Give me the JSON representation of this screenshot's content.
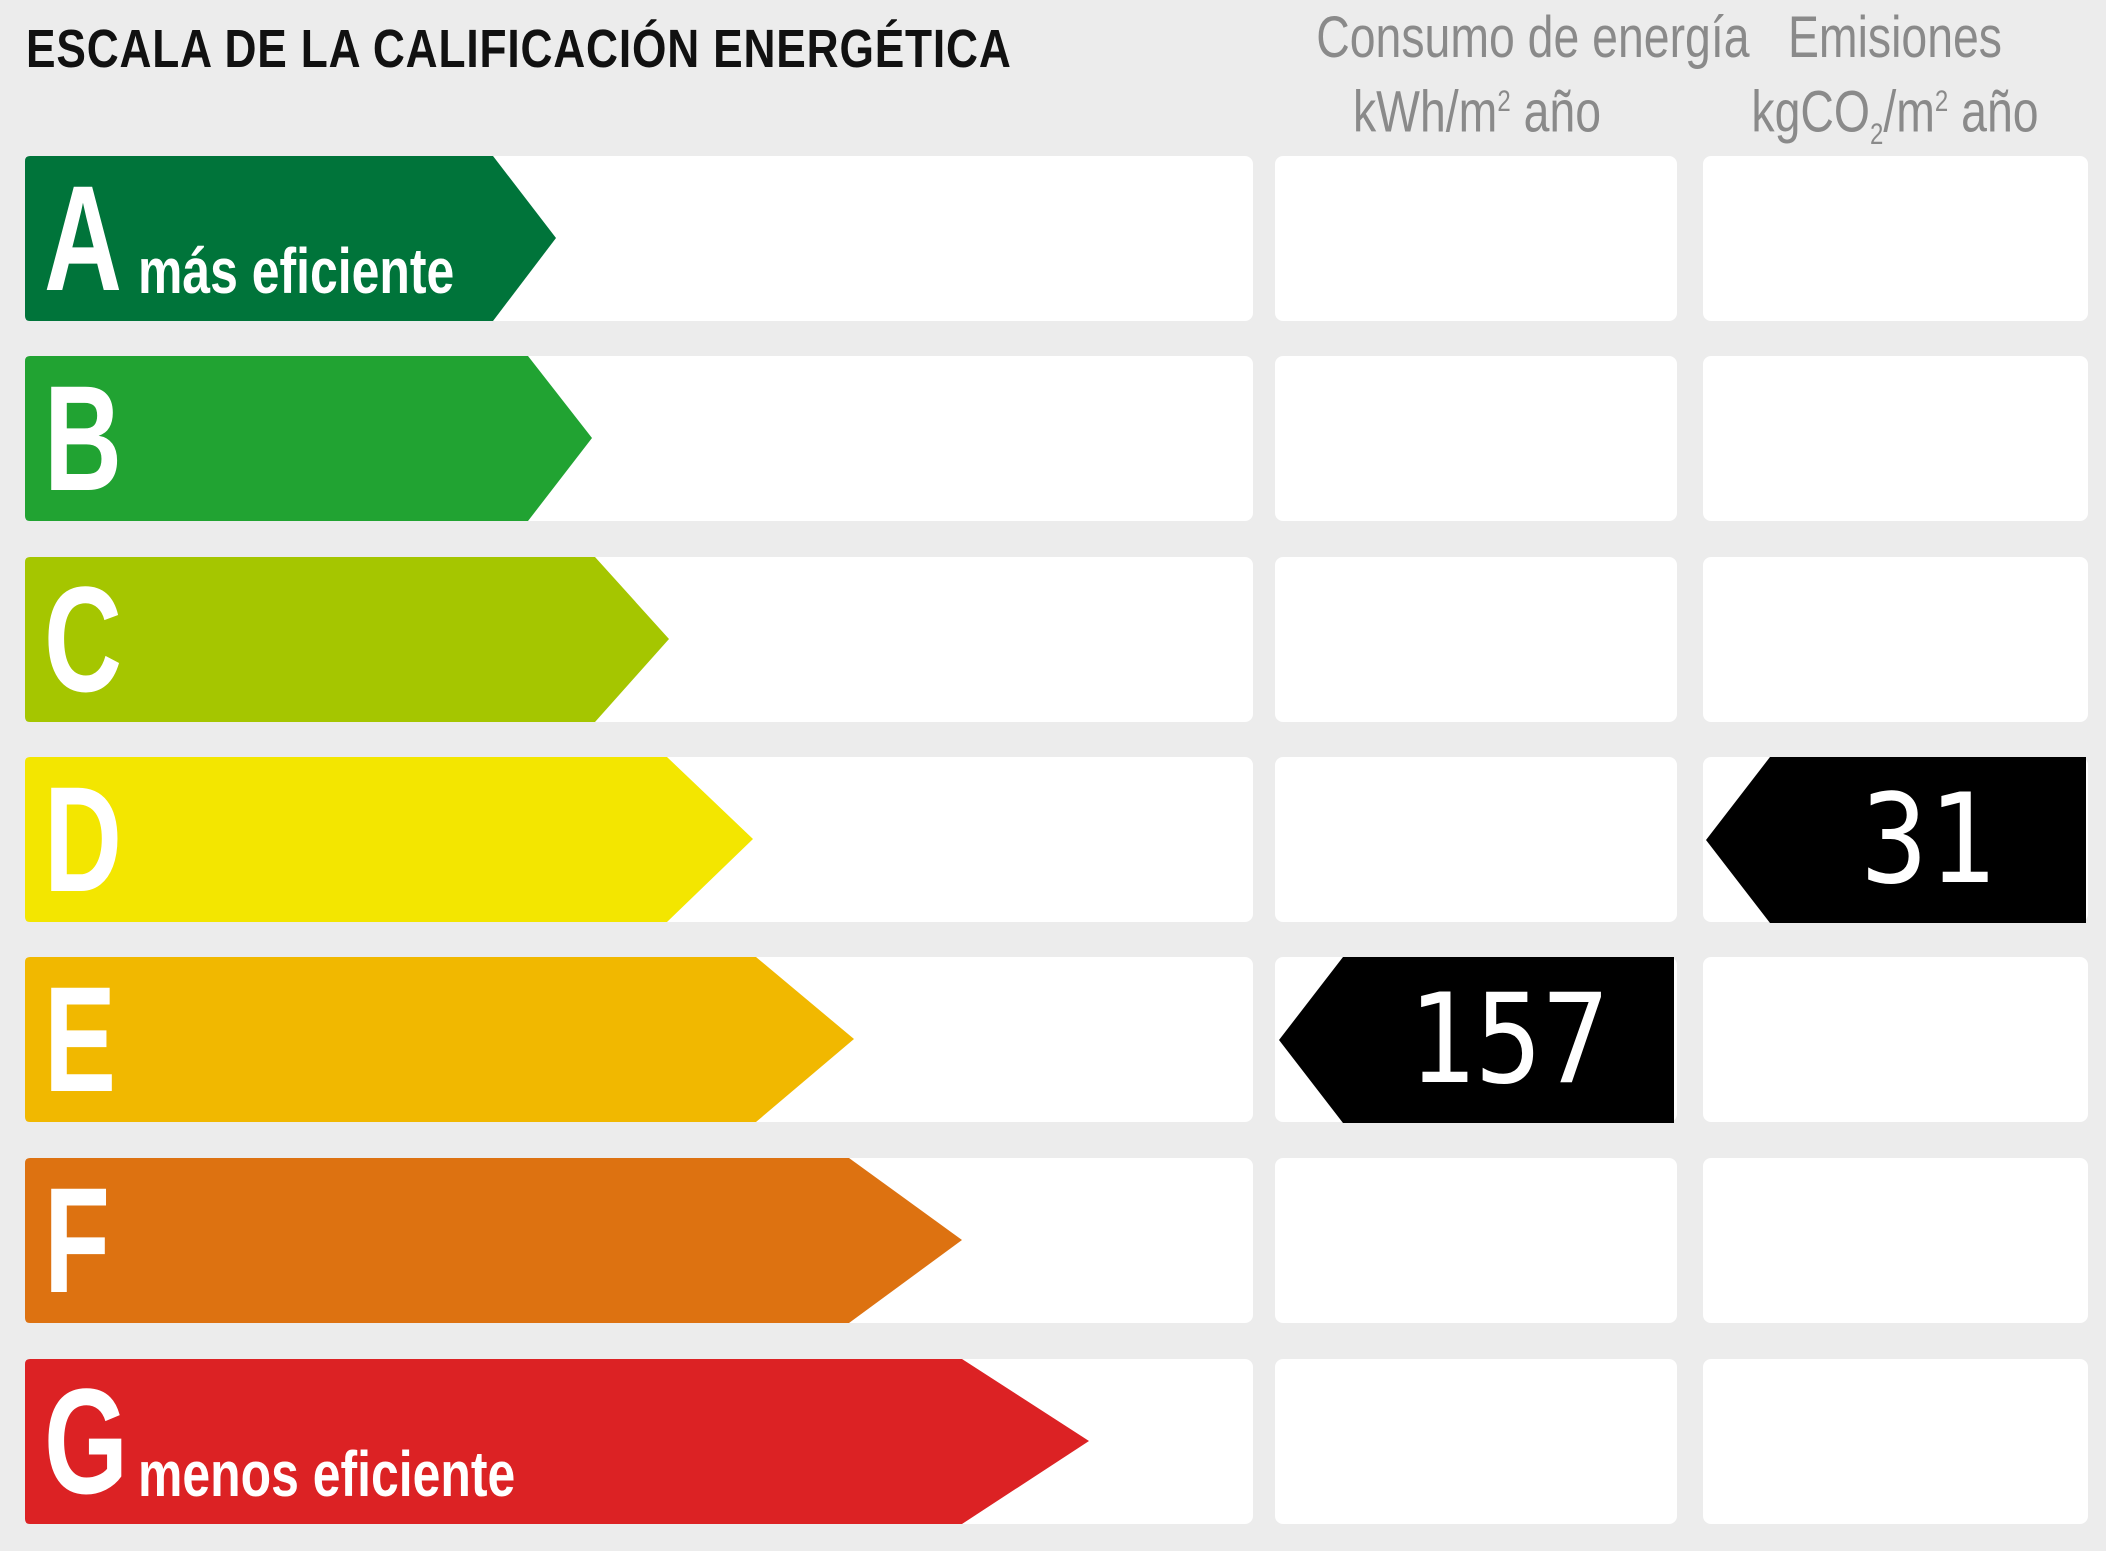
{
  "title": "ESCALA DE LA CALIFICACIÓN ENERGÉTICA",
  "headers": {
    "consumo": {
      "line1": "Consumo de energía",
      "line2_pre": "kWh/m",
      "line2_sup": "2",
      "line2_post": " año"
    },
    "emisiones": {
      "line1": "Emisiones",
      "line2_pre": "kgCO",
      "line2_sub": "2",
      "line2_mid": "/m",
      "line2_sup": "2",
      "line2_post": " año"
    }
  },
  "ratings": [
    {
      "letter": "A",
      "sublabel": "más eficiente",
      "color": "#00743a"
    },
    {
      "letter": "B",
      "sublabel": "",
      "color": "#21a332"
    },
    {
      "letter": "C",
      "sublabel": "",
      "color": "#a5c600"
    },
    {
      "letter": "D",
      "sublabel": "",
      "color": "#f3e600"
    },
    {
      "letter": "E",
      "sublabel": "",
      "color": "#f1b800"
    },
    {
      "letter": "F",
      "sublabel": "",
      "color": "#dd7211"
    },
    {
      "letter": "G",
      "sublabel": "menos eficiente",
      "color": "#dc2224"
    }
  ],
  "consumo": {
    "rating": "E",
    "value": "157"
  },
  "emisiones": {
    "rating": "D",
    "value": "31"
  }
}
